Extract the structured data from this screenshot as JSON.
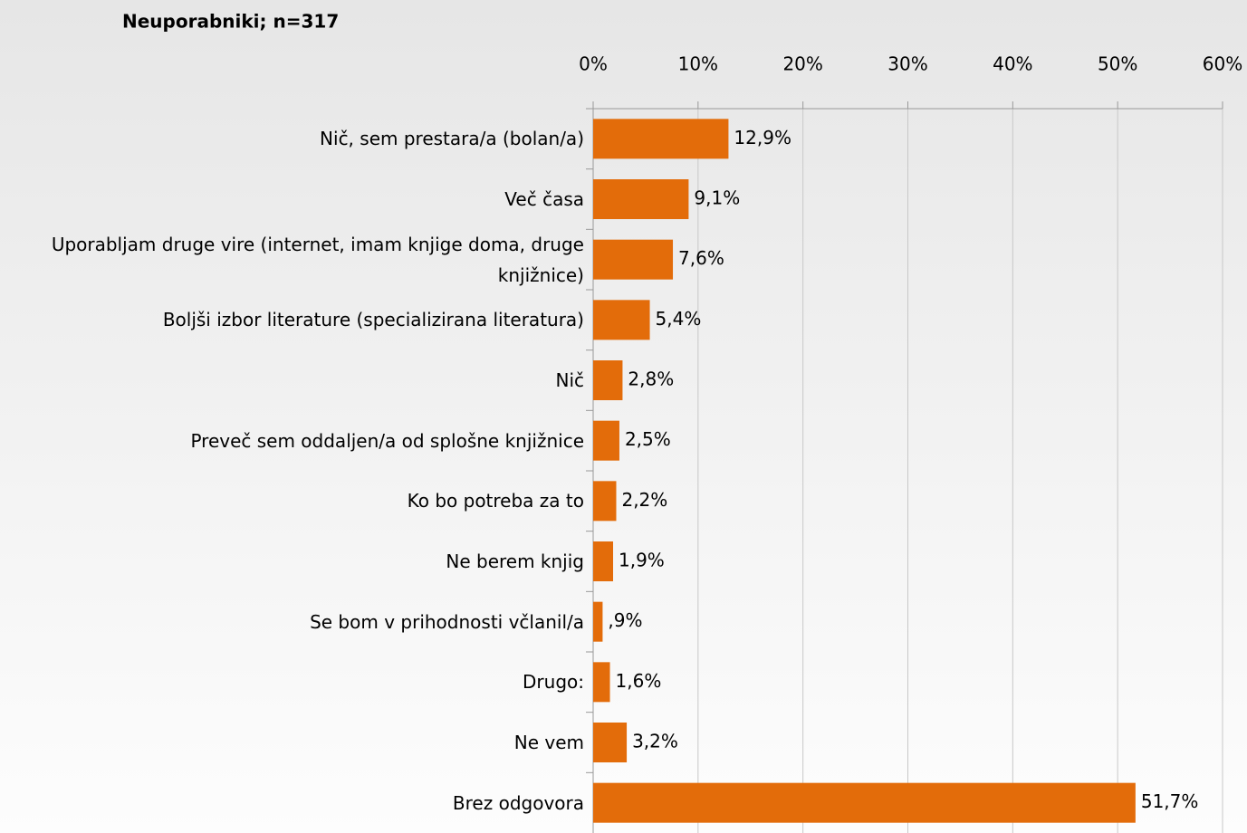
{
  "chart_data": {
    "type": "bar",
    "orientation": "horizontal",
    "title": "Neuporabniki; n=317",
    "categories": [
      "Nič, sem prestara/a (bolan/a)",
      "Več časa",
      "Uporabljam druge vire (internet, imam knjige doma, druge knjižnice)",
      "Boljši izbor literature (specializirana literatura)",
      "Nič",
      "Preveč sem oddaljen/a od splošne knjižnice",
      "Ko bo potreba za to",
      "Ne berem knjig",
      "Se bom v prihodnosti včlanil/a",
      "Drugo:",
      "Ne vem",
      "Brez odgovora"
    ],
    "values": [
      12.9,
      9.1,
      7.6,
      5.4,
      2.8,
      2.5,
      2.2,
      1.9,
      0.9,
      1.6,
      3.2,
      51.7
    ],
    "value_labels": [
      "12,9%",
      "9,1%",
      "7,6%",
      "5,4%",
      "2,8%",
      "2,5%",
      "2,2%",
      "1,9%",
      ",9%",
      "1,6%",
      "3,2%",
      "51,7%"
    ],
    "color": "#e36c0a",
    "xlim": [
      0,
      60
    ],
    "xticks": [
      {
        "value": 0,
        "label": "0%"
      },
      {
        "value": 10,
        "label": "10%"
      },
      {
        "value": 20,
        "label": "20%"
      },
      {
        "value": 30,
        "label": "30%"
      },
      {
        "value": 40,
        "label": "40%"
      },
      {
        "value": 50,
        "label": "50%"
      },
      {
        "value": 60,
        "label": "60%"
      }
    ],
    "grid": true
  }
}
